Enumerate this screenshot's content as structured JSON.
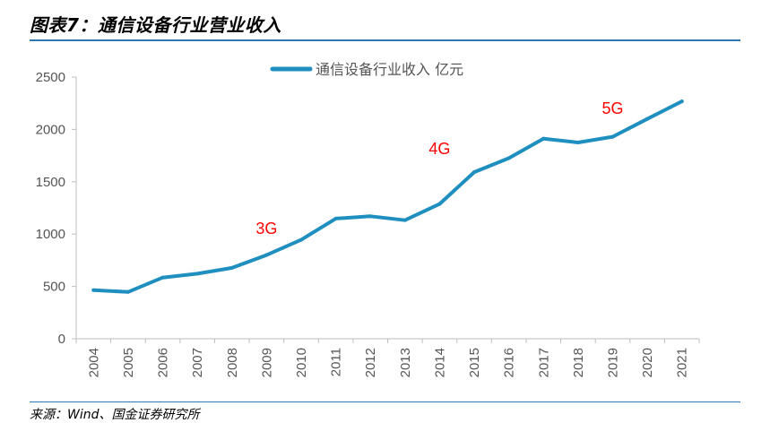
{
  "figure": {
    "title": "图表7：通信设备行业营业收入",
    "source": "来源：Wind、国金证券研究所"
  },
  "chart_data": {
    "type": "line",
    "x": [
      "2004",
      "2005",
      "2006",
      "2007",
      "2008",
      "2009",
      "2010",
      "2011",
      "2012",
      "2013",
      "2014",
      "2015",
      "2016",
      "2017",
      "2018",
      "2019",
      "2020",
      "2021"
    ],
    "series": [
      {
        "name": "通信设备行业收入 亿元",
        "values": [
          465,
          447,
          585,
          622,
          677,
          800,
          945,
          1148,
          1170,
          1133,
          1288,
          1592,
          1725,
          1912,
          1875,
          1930,
          2100,
          2268
        ],
        "color": "#1f8fc0"
      }
    ],
    "ylim": [
      0,
      2500
    ],
    "yticks": [
      0,
      500,
      1000,
      1500,
      2000,
      2500
    ],
    "legend_position": "top",
    "grid": false,
    "annotations": [
      {
        "text": "3G",
        "x": "2009",
        "y": 1000,
        "color": "#ff0000"
      },
      {
        "text": "4G",
        "x": "2014",
        "y": 1765,
        "color": "#ff0000"
      },
      {
        "text": "5G",
        "x": "2019",
        "y": 2150,
        "color": "#ff0000"
      }
    ]
  }
}
